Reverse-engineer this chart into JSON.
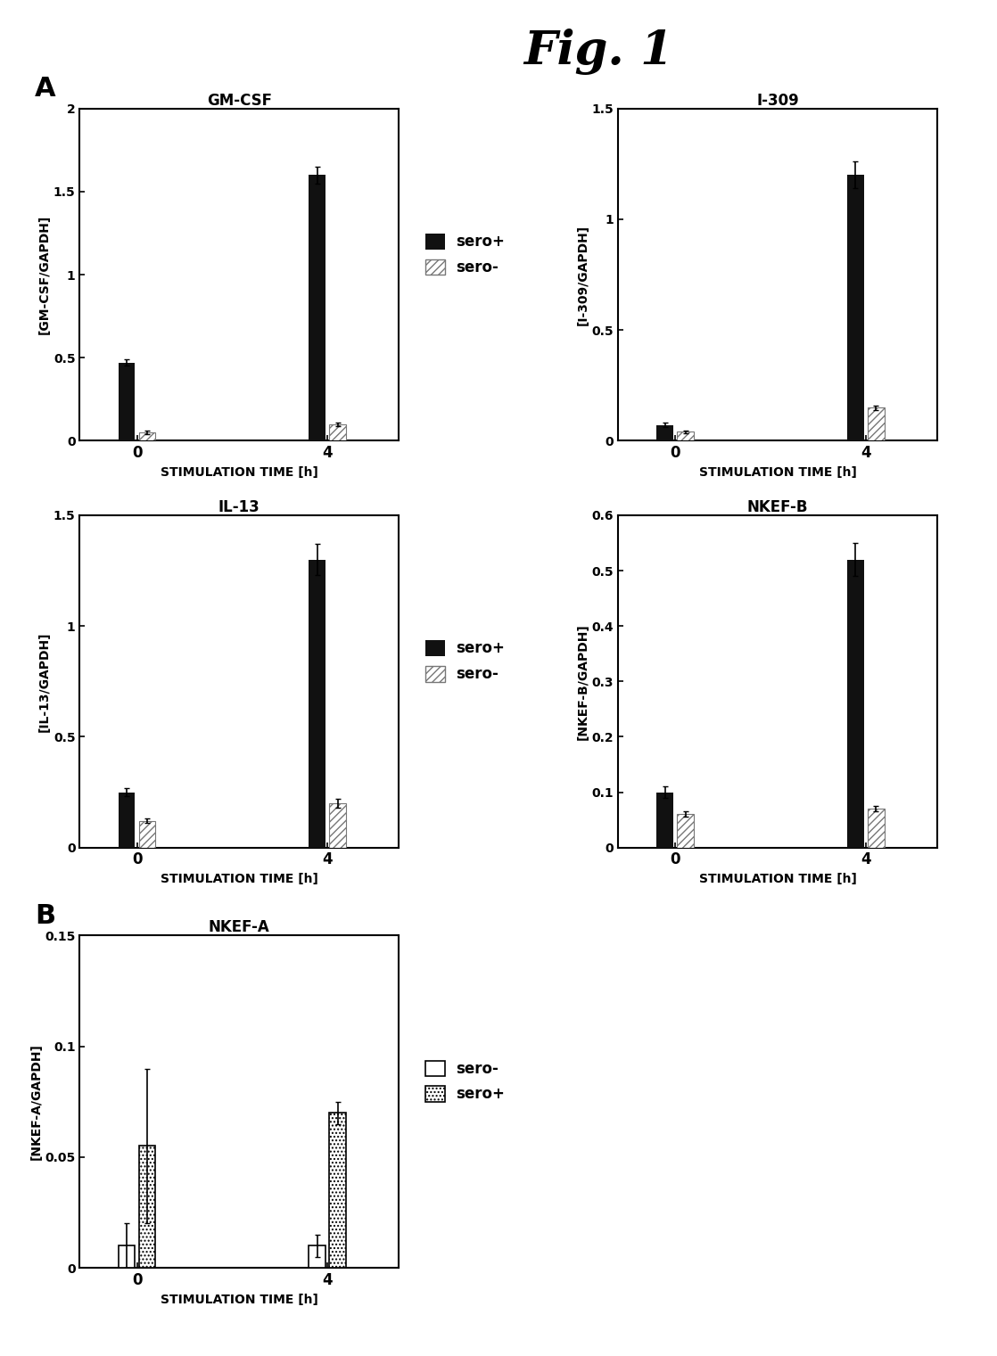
{
  "fig_title": "Fig. 1",
  "panel_A_label": "A",
  "panel_B_label": "B",
  "background_color": "#ffffff",
  "gmcsf": {
    "title": "GM-CSF",
    "ylabel": "[GM-CSF/GAPDH]",
    "xlabel": "STIMULATION TIME [h]",
    "ylim": [
      0,
      2
    ],
    "yticks": [
      0,
      0.5,
      1,
      1.5,
      2
    ],
    "sero_plus": [
      0.47,
      1.6
    ],
    "sero_minus": [
      0.05,
      0.1
    ],
    "sero_plus_err": [
      0.02,
      0.05
    ],
    "sero_minus_err": [
      0.01,
      0.01
    ]
  },
  "i309": {
    "title": "I-309",
    "ylabel": "[I-309/GAPDH]",
    "xlabel": "STIMULATION TIME [h]",
    "ylim": [
      0,
      1.5
    ],
    "yticks": [
      0,
      0.5,
      1,
      1.5
    ],
    "sero_plus": [
      0.07,
      1.2
    ],
    "sero_minus": [
      0.04,
      0.15
    ],
    "sero_plus_err": [
      0.01,
      0.06
    ],
    "sero_minus_err": [
      0.005,
      0.01
    ]
  },
  "il13": {
    "title": "IL-13",
    "ylabel": "[IL-13/GAPDH]",
    "xlabel": "STIMULATION TIME [h]",
    "ylim": [
      0,
      1.5
    ],
    "yticks": [
      0,
      0.5,
      1,
      1.5
    ],
    "sero_plus": [
      0.25,
      1.3
    ],
    "sero_minus": [
      0.12,
      0.2
    ],
    "sero_plus_err": [
      0.02,
      0.07
    ],
    "sero_minus_err": [
      0.01,
      0.02
    ]
  },
  "nkefb": {
    "title": "NKEF-B",
    "ylabel": "[NKEF-B/GAPDH]",
    "xlabel": "STIMULATION TIME [h]",
    "ylim": [
      0,
      0.6
    ],
    "yticks": [
      0,
      0.1,
      0.2,
      0.3,
      0.4,
      0.5,
      0.6
    ],
    "sero_plus": [
      0.1,
      0.52
    ],
    "sero_minus": [
      0.06,
      0.07
    ],
    "sero_plus_err": [
      0.01,
      0.03
    ],
    "sero_minus_err": [
      0.005,
      0.005
    ]
  },
  "nkefa": {
    "title": "NKEF-A",
    "ylabel": "[NKEF-A/GAPDH]",
    "xlabel": "STIMULATION TIME [h]",
    "ylim": [
      0,
      0.15
    ],
    "yticks": [
      0,
      0.05,
      0.1,
      0.15
    ],
    "sero_minus": [
      0.01,
      0.01
    ],
    "sero_plus": [
      0.055,
      0.07
    ],
    "sero_minus_err": [
      0.01,
      0.005
    ],
    "sero_plus_err": [
      0.035,
      0.005
    ]
  },
  "black_color": "#111111",
  "hatch_color": "#777777",
  "bar_width": 0.35,
  "bar_gap": 0.08
}
